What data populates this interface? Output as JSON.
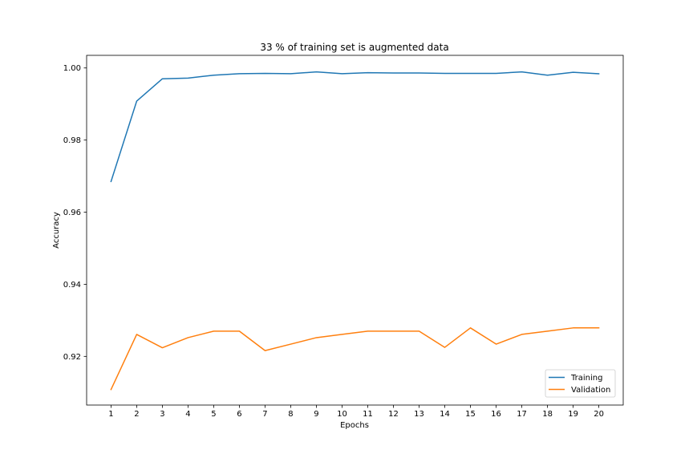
{
  "chart_data": {
    "type": "line",
    "title": "33 % of training set is augmented data",
    "xlabel": "Epochs",
    "ylabel": "Accuracy",
    "x": [
      1,
      2,
      3,
      4,
      5,
      6,
      7,
      8,
      9,
      10,
      11,
      12,
      13,
      14,
      15,
      16,
      17,
      18,
      19,
      20
    ],
    "xticks": [
      "1",
      "2",
      "3",
      "4",
      "5",
      "6",
      "7",
      "8",
      "9",
      "10",
      "11",
      "12",
      "13",
      "14",
      "15",
      "16",
      "17",
      "18",
      "19",
      "20"
    ],
    "yticks": [
      0.92,
      0.94,
      0.96,
      0.98,
      1.0
    ],
    "ytick_labels": [
      "0.92",
      "0.94",
      "0.96",
      "0.98",
      "1.00"
    ],
    "xlim": [
      0.05,
      20.95
    ],
    "ylim": [
      0.9065,
      1.0035
    ],
    "grid": false,
    "legend_position": "lower-right",
    "series": [
      {
        "name": "Training",
        "color": "#1f77b4",
        "values": [
          0.9685,
          0.9908,
          0.997,
          0.9972,
          0.998,
          0.9984,
          0.9985,
          0.9984,
          0.9989,
          0.9984,
          0.9987,
          0.9986,
          0.9986,
          0.9985,
          0.9985,
          0.9985,
          0.9989,
          0.998,
          0.9988,
          0.9984
        ]
      },
      {
        "name": "Validation",
        "color": "#ff7f0e",
        "values": [
          0.9108,
          0.9261,
          0.9224,
          0.9252,
          0.927,
          0.927,
          0.9216,
          0.9234,
          0.9252,
          0.9261,
          0.927,
          0.927,
          0.927,
          0.9225,
          0.9279,
          0.9234,
          0.9261,
          0.927,
          0.9279,
          0.9279
        ]
      }
    ]
  }
}
